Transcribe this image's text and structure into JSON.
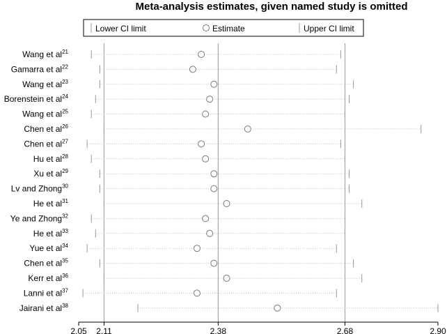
{
  "chart_data": {
    "type": "forest",
    "title": "Meta-analysis estimates, given named study is omitted",
    "legend": {
      "lower": "Lower CI limit",
      "estimate": "Estimate",
      "upper": "Upper CI limit",
      "placement": "top"
    },
    "x_axis": {
      "ticks": [
        "2.05",
        "2.11",
        "2.38",
        "2.68",
        "2.90"
      ],
      "tick_values": [
        2.05,
        2.11,
        2.38,
        2.68,
        2.9
      ],
      "reference_lines": [
        2.11,
        2.38,
        2.68
      ],
      "range": [
        2.05,
        2.9
      ]
    },
    "studies": [
      {
        "name": "Wang et al",
        "ref": "21",
        "lower": 2.08,
        "estimate": 2.34,
        "upper": 2.67
      },
      {
        "name": "Gamarra et al",
        "ref": "22",
        "lower": 2.1,
        "estimate": 2.32,
        "upper": 2.66
      },
      {
        "name": "Wang et al",
        "ref": "23",
        "lower": 2.1,
        "estimate": 2.37,
        "upper": 2.7
      },
      {
        "name": "Borenstein et al",
        "ref": "24",
        "lower": 2.09,
        "estimate": 2.36,
        "upper": 2.69
      },
      {
        "name": "Wang et al",
        "ref": "25",
        "lower": 2.08,
        "estimate": 2.35,
        "upper": 2.68
      },
      {
        "name": "Chen et al",
        "ref": "26",
        "lower": 2.11,
        "estimate": 2.45,
        "upper": 2.86
      },
      {
        "name": "Chen et al",
        "ref": "27",
        "lower": 2.07,
        "estimate": 2.34,
        "upper": 2.67
      },
      {
        "name": "Hu et al",
        "ref": "28",
        "lower": 2.08,
        "estimate": 2.35,
        "upper": 2.68
      },
      {
        "name": "Xu et al",
        "ref": "29",
        "lower": 2.1,
        "estimate": 2.37,
        "upper": 2.69
      },
      {
        "name": "Lv and Zhong",
        "ref": "30",
        "lower": 2.1,
        "estimate": 2.37,
        "upper": 2.69
      },
      {
        "name": "He et al",
        "ref": "31",
        "lower": 2.11,
        "estimate": 2.4,
        "upper": 2.72
      },
      {
        "name": "Ye and Zhong",
        "ref": "32",
        "lower": 2.08,
        "estimate": 2.35,
        "upper": 2.68
      },
      {
        "name": "He et al",
        "ref": "33",
        "lower": 2.09,
        "estimate": 2.36,
        "upper": 2.68
      },
      {
        "name": "Yue et al",
        "ref": "34",
        "lower": 2.07,
        "estimate": 2.33,
        "upper": 2.66
      },
      {
        "name": "Chen et al",
        "ref": "35",
        "lower": 2.1,
        "estimate": 2.37,
        "upper": 2.7
      },
      {
        "name": "Kerr et al",
        "ref": "36",
        "lower": 2.11,
        "estimate": 2.4,
        "upper": 2.72
      },
      {
        "name": "Lanni et al",
        "ref": "37",
        "lower": 2.06,
        "estimate": 2.33,
        "upper": 2.66
      },
      {
        "name": "Jairani et al",
        "ref": "38",
        "lower": 2.19,
        "estimate": 2.52,
        "upper": 2.9
      }
    ]
  }
}
